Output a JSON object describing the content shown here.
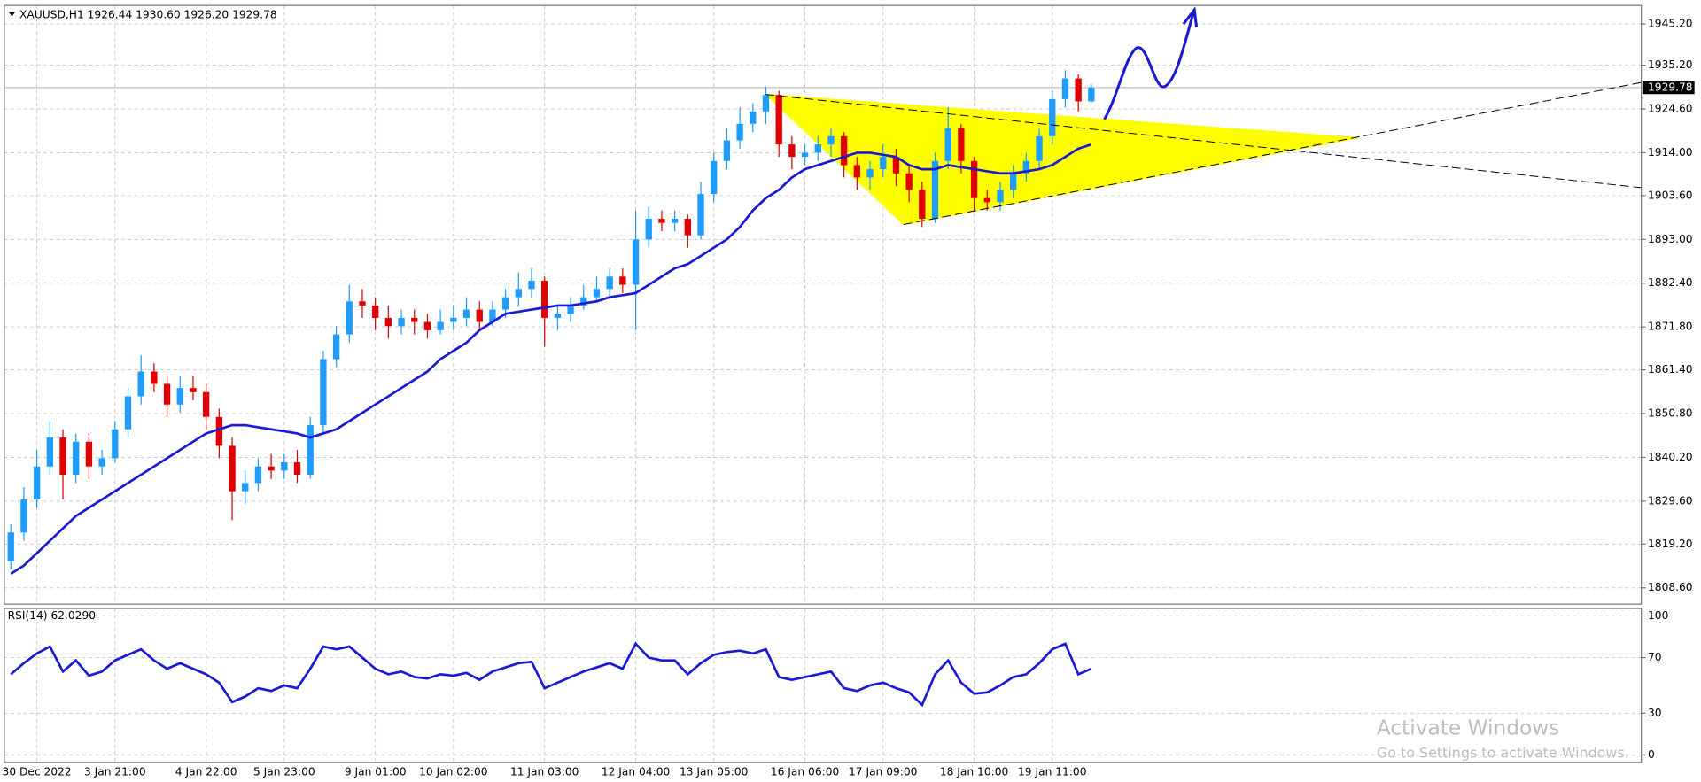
{
  "chart_data": [
    {
      "type": "candlestick",
      "header": "XAUUSD,H1  1926.44 1930.60 1926.20 1929.78",
      "categories": [
        null,
        null,
        "30 Dec 2022",
        null,
        null,
        null,
        null,
        null,
        "3 Jan 21:00",
        null,
        null,
        null,
        null,
        null,
        null,
        "4 Jan 22:00",
        null,
        null,
        null,
        null,
        null,
        "5 Jan 23:00",
        null,
        null,
        null,
        null,
        null,
        null,
        "9 Jan 01:00",
        null,
        null,
        null,
        null,
        null,
        "10 Jan 02:00",
        null,
        null,
        null,
        null,
        null,
        null,
        "11 Jan 03:00",
        null,
        null,
        null,
        null,
        null,
        null,
        "12 Jan 04:00",
        null,
        null,
        null,
        null,
        null,
        "13 Jan 05:00",
        null,
        null,
        null,
        null,
        null,
        null,
        "16 Jan 06:00",
        null,
        null,
        null,
        null,
        null,
        "17 Jan 09:00",
        null,
        null,
        null,
        null,
        null,
        null,
        "18 Jan 10:00",
        null,
        null,
        null,
        null,
        null,
        "19 Jan 11:00",
        null,
        null,
        null
      ],
      "open": [
        1815,
        1822,
        1830,
        1838,
        1845,
        1836,
        1844,
        1838,
        1840,
        1847,
        1855,
        1861,
        1858,
        1853,
        1857,
        1856,
        1850,
        1843,
        1832,
        1834,
        1838,
        1837,
        1839,
        1836,
        1848,
        1864,
        1870,
        1878,
        1877,
        1874,
        1872,
        1874,
        1873,
        1871,
        1873,
        1874,
        1876,
        1873,
        1876,
        1879,
        1881,
        1883,
        1874,
        1875,
        1877,
        1879,
        1881,
        1884,
        1882,
        1893,
        1898,
        1897,
        1898,
        1894,
        1904,
        1912,
        1917,
        1921,
        1924,
        1928,
        1916,
        1913,
        1914,
        1916,
        1918,
        1911,
        1908,
        1910,
        1913,
        1909,
        1905,
        1898,
        1912,
        1920,
        1912,
        1903,
        1902,
        1905,
        1909,
        1912,
        1918,
        1927,
        1932,
        1926.44
      ],
      "high": [
        1824,
        1833,
        1842,
        1849,
        1847,
        1846,
        1846,
        1842,
        1849,
        1857,
        1865,
        1863,
        1860,
        1860,
        1860,
        1858,
        1852,
        1845,
        1837,
        1840,
        1841,
        1841,
        1842,
        1850,
        1866,
        1872,
        1882,
        1881,
        1879,
        1877,
        1876,
        1876,
        1875,
        1876,
        1877,
        1879,
        1878,
        1878,
        1881,
        1885,
        1886,
        1884,
        1877,
        1879,
        1882,
        1884,
        1886,
        1886,
        1900,
        1901,
        1900,
        1900,
        1899,
        1907,
        1914,
        1920,
        1925,
        1926,
        1930,
        1929,
        1918,
        1916,
        1918,
        1920,
        1919,
        1913,
        1912,
        1916,
        1915,
        1911,
        1907,
        1914,
        1925,
        1921,
        1913,
        1905,
        1907,
        1911,
        1914,
        1920,
        1929,
        1934,
        1933,
        1930.6
      ],
      "low": [
        1813,
        1820,
        1828,
        1836,
        1830,
        1834,
        1835,
        1836,
        1839,
        1845,
        1853,
        1856,
        1850,
        1851,
        1854,
        1847,
        1840,
        1825,
        1829,
        1832,
        1835,
        1835,
        1834,
        1835,
        1846,
        1862,
        1868,
        1874,
        1871,
        1869,
        1870,
        1870,
        1869,
        1870,
        1871,
        1872,
        1871,
        1872,
        1874,
        1877,
        1879,
        1867,
        1871,
        1873,
        1876,
        1878,
        1879,
        1880,
        1871,
        1891,
        1895,
        1895,
        1891,
        1893,
        1902,
        1910,
        1915,
        1919,
        1921,
        1913,
        1910,
        1911,
        1912,
        1913,
        1908,
        1905,
        1905,
        1908,
        1906,
        1902,
        1896,
        1897,
        1910,
        1909,
        1900,
        1900,
        1900,
        1903,
        1907,
        1910,
        1916,
        1925,
        1924,
        1926.2
      ],
      "close": [
        1822,
        1830,
        1838,
        1845,
        1836,
        1844,
        1838,
        1840,
        1847,
        1855,
        1861,
        1858,
        1853,
        1857,
        1856,
        1850,
        1843,
        1832,
        1834,
        1838,
        1837,
        1839,
        1836,
        1848,
        1864,
        1870,
        1878,
        1877,
        1874,
        1872,
        1874,
        1873,
        1871,
        1873,
        1874,
        1876,
        1873,
        1876,
        1879,
        1881,
        1883,
        1874,
        1875,
        1877,
        1879,
        1881,
        1884,
        1882,
        1893,
        1898,
        1897,
        1898,
        1894,
        1904,
        1912,
        1917,
        1921,
        1924,
        1928,
        1916,
        1913,
        1914,
        1916,
        1918,
        1911,
        1908,
        1910,
        1913,
        1909,
        1905,
        1898,
        1912,
        1920,
        1912,
        1903,
        1902,
        1905,
        1909,
        1912,
        1918,
        1927,
        1932,
        1926.44,
        1929.78
      ],
      "up_color": "#1e9cff",
      "down_color": "#e00000",
      "lines": [
        {
          "color": "#1a1ad6",
          "values": [
            1812,
            1814,
            1817,
            1820,
            1823,
            1826,
            1828,
            1830,
            1832,
            1834,
            1836,
            1838,
            1840,
            1842,
            1844,
            1846,
            1847,
            1848,
            1848,
            1847.5,
            1847,
            1846.5,
            1846,
            1845,
            1846,
            1847,
            1849,
            1851,
            1853,
            1855,
            1857,
            1859,
            1861,
            1864,
            1866,
            1868,
            1871,
            1873,
            1875,
            1875.5,
            1876,
            1876.5,
            1877,
            1877,
            1877.5,
            1878,
            1879,
            1879.5,
            1880,
            1882,
            1884,
            1886,
            1887,
            1889,
            1891,
            1893,
            1896,
            1900,
            1903,
            1905,
            1908,
            1910,
            1911,
            1912,
            1913,
            1914,
            1914,
            1913.5,
            1913,
            1911,
            1910,
            1910,
            1911,
            1910.5,
            1910,
            1909.5,
            1909,
            1909,
            1909.5,
            1910,
            1911,
            1913,
            1915,
            1916
          ]
        }
      ],
      "ylim": [
        1804.66,
        1949.67
      ],
      "yticks": [
        {
          "value": 1945.2,
          "label": "1945.20"
        },
        {
          "value": 1935.2,
          "label": "1935.20"
        },
        {
          "value": 1924.6,
          "label": "1924.60"
        },
        {
          "value": 1914,
          "label": "1914.00"
        },
        {
          "value": 1903.6,
          "label": "1903.60"
        },
        {
          "value": 1893,
          "label": "1893.00"
        },
        {
          "value": 1882.4,
          "label": "1882.40"
        },
        {
          "value": 1871.8,
          "label": "1871.80"
        },
        {
          "value": 1861.4,
          "label": "1861.40"
        },
        {
          "value": 1850.8,
          "label": "1850.80"
        },
        {
          "value": 1840.2,
          "label": "1840.20"
        },
        {
          "value": 1829.6,
          "label": "1829.60"
        },
        {
          "value": 1819.2,
          "label": "1819.20"
        },
        {
          "value": 1808.6,
          "label": "1808.60"
        }
      ],
      "grid": true
    },
    {
      "type": "line",
      "title": "RSI(14) 62.0290",
      "color": "#1a1ad6",
      "values": [
        58,
        66,
        73,
        78,
        60,
        68,
        57,
        60,
        68,
        72,
        76,
        68,
        62,
        66,
        62,
        58,
        52,
        38,
        42,
        48,
        46,
        50,
        48,
        62,
        78,
        76,
        78,
        70,
        62,
        58,
        60,
        56,
        55,
        58,
        57,
        59,
        54,
        60,
        63,
        66,
        67,
        48,
        52,
        56,
        60,
        63,
        66,
        62,
        80,
        70,
        68,
        68,
        58,
        66,
        72,
        74,
        75,
        73,
        76,
        56,
        54,
        56,
        58,
        60,
        48,
        46,
        50,
        52,
        48,
        45,
        36,
        58,
        68,
        52,
        44,
        45,
        50,
        56,
        58,
        66,
        76,
        80,
        58,
        62.029
      ],
      "ylim": [
        -5.4,
        105.4
      ],
      "yticks": [
        0,
        30,
        70,
        100
      ],
      "grid": true
    },
    {
      "type": "watermark",
      "title": "Activate Windows",
      "subtitle": "Go to Settings to activate Windows."
    }
  ]
}
